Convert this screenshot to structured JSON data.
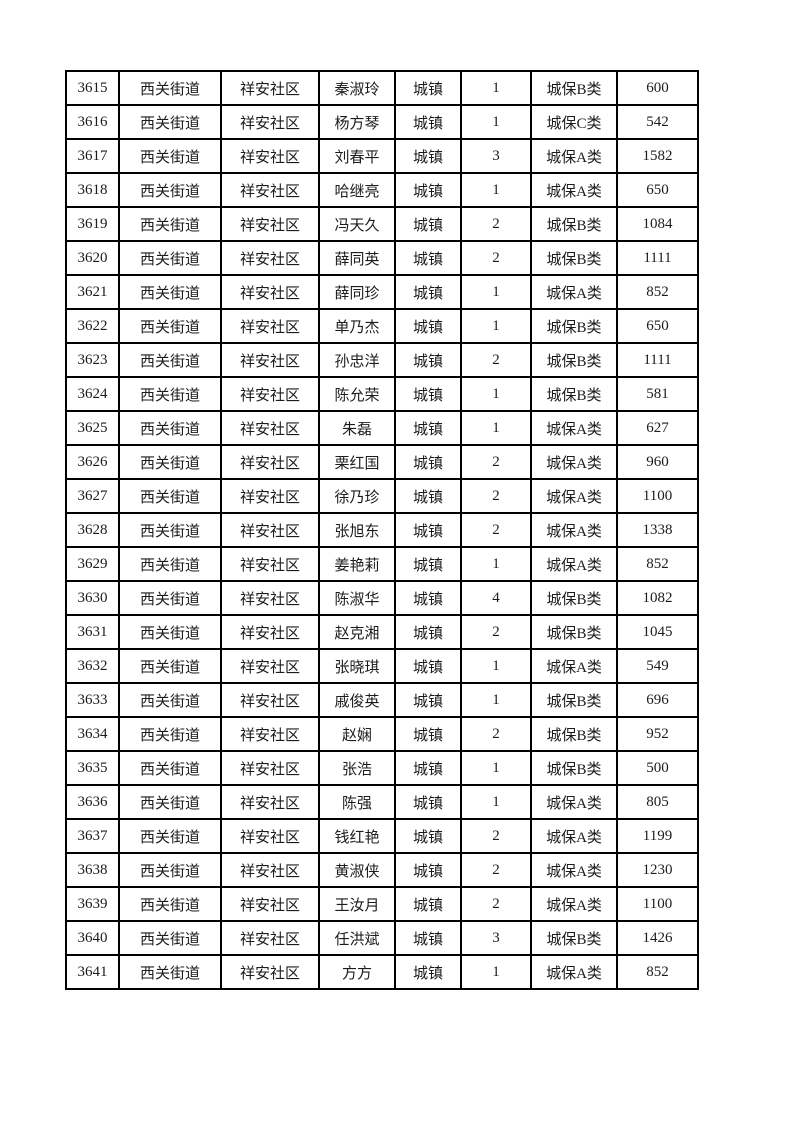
{
  "page": {
    "background_color": "#ffffff",
    "border_color": "#000000",
    "text_color": "#1c1c1c"
  },
  "table": {
    "rows": [
      [
        "3615",
        "西关街道",
        "祥安社区",
        "秦淑玲",
        "城镇",
        "1",
        "城保B类",
        "600"
      ],
      [
        "3616",
        "西关街道",
        "祥安社区",
        "杨方琴",
        "城镇",
        "1",
        "城保C类",
        "542"
      ],
      [
        "3617",
        "西关街道",
        "祥安社区",
        "刘春平",
        "城镇",
        "3",
        "城保A类",
        "1582"
      ],
      [
        "3618",
        "西关街道",
        "祥安社区",
        "哈继亮",
        "城镇",
        "1",
        "城保A类",
        "650"
      ],
      [
        "3619",
        "西关街道",
        "祥安社区",
        "冯天久",
        "城镇",
        "2",
        "城保B类",
        "1084"
      ],
      [
        "3620",
        "西关街道",
        "祥安社区",
        "薛同英",
        "城镇",
        "2",
        "城保B类",
        "1111"
      ],
      [
        "3621",
        "西关街道",
        "祥安社区",
        "薛同珍",
        "城镇",
        "1",
        "城保A类",
        "852"
      ],
      [
        "3622",
        "西关街道",
        "祥安社区",
        "单乃杰",
        "城镇",
        "1",
        "城保B类",
        "650"
      ],
      [
        "3623",
        "西关街道",
        "祥安社区",
        "孙忠洋",
        "城镇",
        "2",
        "城保B类",
        "1111"
      ],
      [
        "3624",
        "西关街道",
        "祥安社区",
        "陈允荣",
        "城镇",
        "1",
        "城保B类",
        "581"
      ],
      [
        "3625",
        "西关街道",
        "祥安社区",
        "朱磊",
        "城镇",
        "1",
        "城保A类",
        "627"
      ],
      [
        "3626",
        "西关街道",
        "祥安社区",
        "栗红国",
        "城镇",
        "2",
        "城保A类",
        "960"
      ],
      [
        "3627",
        "西关街道",
        "祥安社区",
        "徐乃珍",
        "城镇",
        "2",
        "城保A类",
        "1100"
      ],
      [
        "3628",
        "西关街道",
        "祥安社区",
        "张旭东",
        "城镇",
        "2",
        "城保A类",
        "1338"
      ],
      [
        "3629",
        "西关街道",
        "祥安社区",
        "姜艳莉",
        "城镇",
        "1",
        "城保A类",
        "852"
      ],
      [
        "3630",
        "西关街道",
        "祥安社区",
        "陈淑华",
        "城镇",
        "4",
        "城保B类",
        "1082"
      ],
      [
        "3631",
        "西关街道",
        "祥安社区",
        "赵克湘",
        "城镇",
        "2",
        "城保B类",
        "1045"
      ],
      [
        "3632",
        "西关街道",
        "祥安社区",
        "张晓琪",
        "城镇",
        "1",
        "城保A类",
        "549"
      ],
      [
        "3633",
        "西关街道",
        "祥安社区",
        "戚俊英",
        "城镇",
        "1",
        "城保B类",
        "696"
      ],
      [
        "3634",
        "西关街道",
        "祥安社区",
        "赵娴",
        "城镇",
        "2",
        "城保B类",
        "952"
      ],
      [
        "3635",
        "西关街道",
        "祥安社区",
        "张浩",
        "城镇",
        "1",
        "城保B类",
        "500"
      ],
      [
        "3636",
        "西关街道",
        "祥安社区",
        "陈强",
        "城镇",
        "1",
        "城保A类",
        "805"
      ],
      [
        "3637",
        "西关街道",
        "祥安社区",
        "钱红艳",
        "城镇",
        "2",
        "城保A类",
        "1199"
      ],
      [
        "3638",
        "西关街道",
        "祥安社区",
        "黄淑侠",
        "城镇",
        "2",
        "城保A类",
        "1230"
      ],
      [
        "3639",
        "西关街道",
        "祥安社区",
        "王汝月",
        "城镇",
        "2",
        "城保A类",
        "1100"
      ],
      [
        "3640",
        "西关街道",
        "祥安社区",
        "任洪斌",
        "城镇",
        "3",
        "城保B类",
        "1426"
      ],
      [
        "3641",
        "西关街道",
        "祥安社区",
        "方方",
        "城镇",
        "1",
        "城保A类",
        "852"
      ]
    ]
  }
}
